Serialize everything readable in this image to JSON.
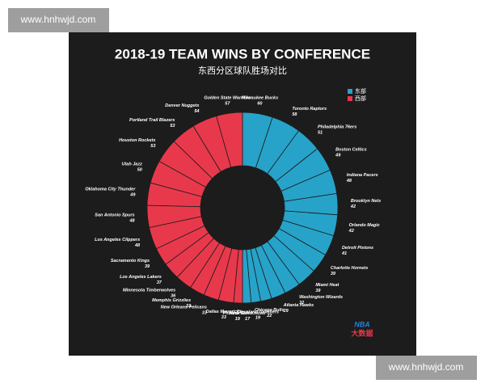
{
  "watermark": "www.hnhwjd.com",
  "logo": {
    "brand": "NBA",
    "text": "大数据"
  },
  "chart_data": {
    "type": "donut",
    "title": "2018-19 TEAM WINS BY CONFERENCE",
    "subtitle": "东西分区球队胜场对比",
    "legend": "top-right",
    "series": [
      {
        "name": "东部",
        "color": "#27a3c9",
        "categories": [
          "Milwaukee Bucks",
          "Toronto Raptors",
          "Philadelphia 76ers",
          "Boston Celtics",
          "Indiana Pacers",
          "Brooklyn Nets",
          "Orlando Magic",
          "Detroit Pistons",
          "Charlotte Hornets",
          "Miami Heat",
          "Washington Wizards",
          "Atlanta Hawks",
          "Chicago Bulls",
          "Cleveland Cavaliers",
          "New York Knicks"
        ],
        "values": [
          60,
          58,
          51,
          49,
          48,
          42,
          42,
          41,
          39,
          39,
          32,
          29,
          22,
          19,
          17
        ]
      },
      {
        "name": "西部",
        "color": "#e8394c",
        "categories": [
          "Golden State Warriors",
          "Denver Nuggets",
          "Portland Trail Blazers",
          "Houston Rockets",
          "Utah Jazz",
          "Oklahoma City Thunder",
          "San Antonio Spurs",
          "Los Angeles Clippers",
          "Sacramento Kings",
          "Los Angeles Lakers",
          "Minnesota Timberwolves",
          "Memphis Grizzlies",
          "New Orleans Pelicans",
          "Dallas Mavericks",
          "Phoenix Suns"
        ],
        "values": [
          57,
          54,
          53,
          53,
          50,
          49,
          48,
          48,
          39,
          37,
          36,
          33,
          33,
          33,
          19
        ]
      }
    ]
  }
}
